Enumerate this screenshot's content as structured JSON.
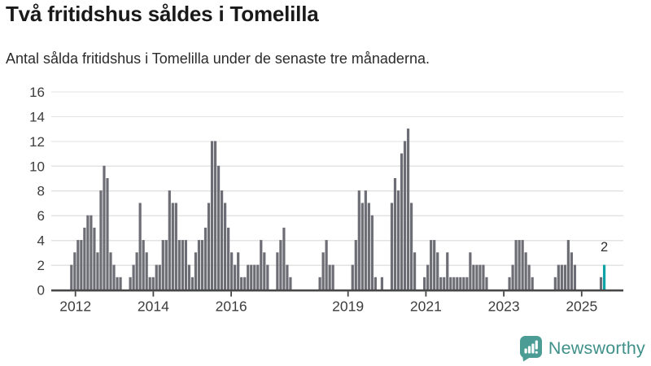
{
  "header": {
    "title": "Två fritidshus såldes i Tomelilla",
    "subtitle": "Antal sålda fritidshus i Tomelilla under de senaste tre månaderna."
  },
  "chart_data": {
    "type": "bar",
    "title": "Två fritidshus såldes i Tomelilla",
    "subtitle": "Antal sålda fritidshus i Tomelilla under de senaste tre månaderna.",
    "x_unit": "month",
    "x_description": "Monthly bars from late 2011 to mid 2025; positions estimated from year ticks",
    "x_ticks": [
      2012,
      2014,
      2016,
      2019,
      2021,
      2023,
      2025
    ],
    "y_ticks": [
      0,
      2,
      4,
      6,
      8,
      10,
      12,
      14,
      16
    ],
    "ylim": [
      0,
      16
    ],
    "grid": "horizontal",
    "values": [
      2,
      3,
      4,
      4,
      5,
      6,
      6,
      5,
      3,
      8,
      10,
      9,
      3,
      2,
      1,
      1,
      0,
      0,
      1,
      2,
      3,
      7,
      4,
      3,
      1,
      1,
      2,
      2,
      4,
      4,
      8,
      7,
      7,
      4,
      4,
      4,
      2,
      1,
      3,
      4,
      4,
      5,
      7,
      12,
      12,
      10,
      8,
      7,
      5,
      3,
      2,
      3,
      1,
      1,
      2,
      2,
      2,
      2,
      4,
      3,
      2,
      0,
      0,
      3,
      4,
      5,
      2,
      1,
      0,
      0,
      0,
      0,
      0,
      0,
      0,
      0,
      1,
      3,
      4,
      2,
      2,
      0,
      0,
      0,
      0,
      0,
      2,
      4,
      8,
      7,
      8,
      7,
      6,
      1,
      0,
      1,
      0,
      0,
      7,
      9,
      8,
      11,
      12,
      13,
      7,
      3,
      0,
      0,
      1,
      2,
      4,
      4,
      3,
      1,
      1,
      3,
      1,
      1,
      1,
      1,
      1,
      1,
      3,
      2,
      2,
      2,
      2,
      1,
      0,
      0,
      0,
      0,
      0,
      0,
      1,
      2,
      4,
      4,
      4,
      3,
      2,
      1,
      0,
      0,
      0,
      0,
      0,
      0,
      1,
      2,
      2,
      2,
      4,
      3,
      2,
      0,
      0,
      0,
      0,
      0,
      0,
      0,
      1,
      2
    ],
    "highlight_last_bar": true,
    "last_value_label": "2",
    "bar_color": "#6d6d75",
    "highlight_color": "#0ba4a6",
    "axis_color": "#474747",
    "gridline_color": "#e3e3e3"
  },
  "footer": {
    "brand": "Newsworthy",
    "logo_icon": "bar-chart-speech-bubble-icon",
    "brand_color": "#3e9089",
    "icon_color": "#4a9c95"
  }
}
